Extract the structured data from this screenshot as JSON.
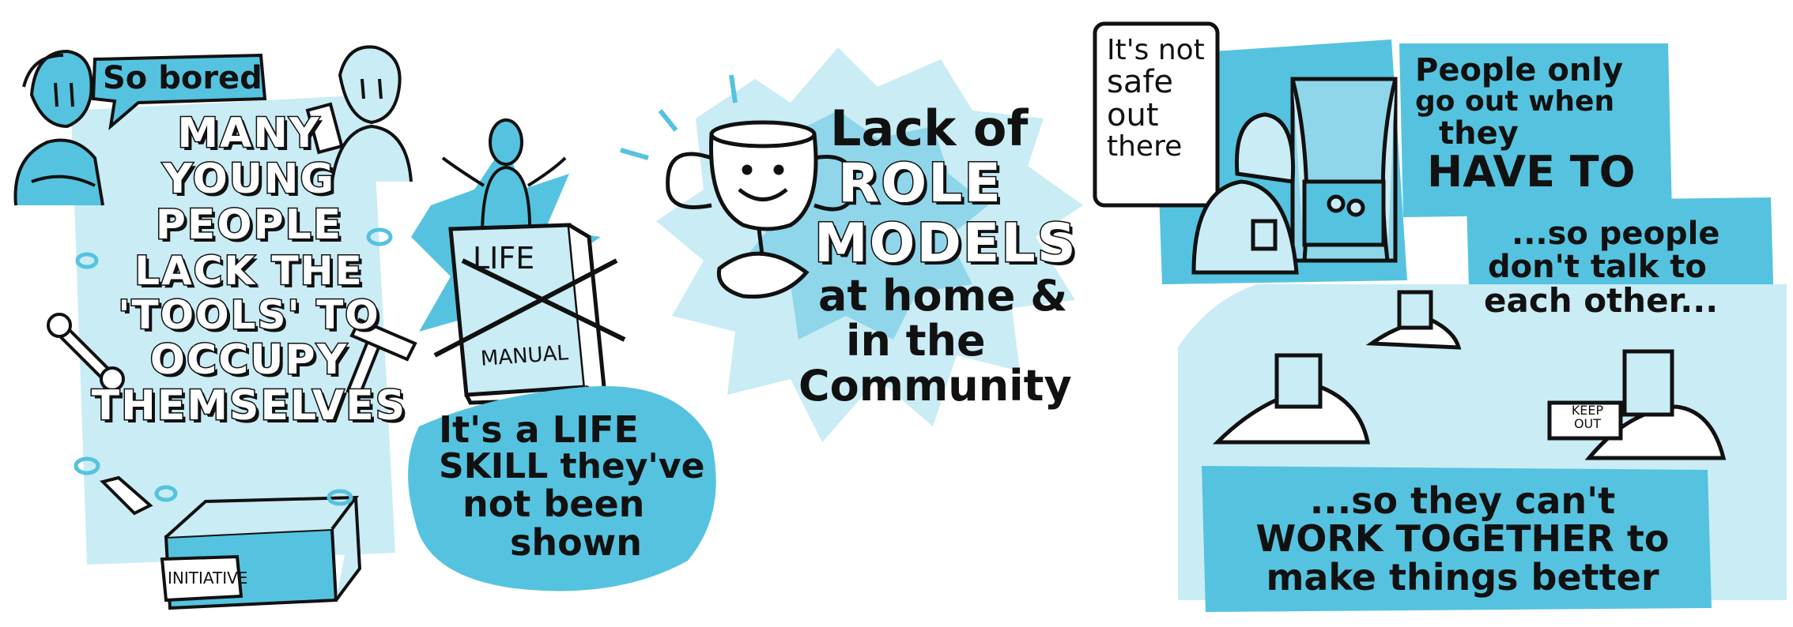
{
  "colors": {
    "blue": "#55c3df",
    "light_blue": "#c9ecf5",
    "mid_blue": "#8fd6ea",
    "ink": "#111111",
    "white": "#ffffff"
  },
  "panel1": {
    "speech": "So bored",
    "headline": [
      "MANY",
      "YOUNG",
      "PEOPLE",
      "LACK THE",
      "'TOOLS' TO",
      "OCCUPY",
      "THEMSELVES"
    ],
    "box_label": "INITIATIVE"
  },
  "panel2": {
    "book_top": "LIFE",
    "book_bottom": "MANUAL",
    "caption": [
      "It's a LIFE",
      "SKILL they've",
      "not been",
      "shown"
    ]
  },
  "panel3": {
    "line1": "Lack of",
    "line2": "ROLE",
    "line3": "MODELS",
    "line4": "at home &",
    "line5": "in the",
    "line6": "Community"
  },
  "panel4": {
    "sign": [
      "It's not",
      "safe",
      "out",
      "there"
    ],
    "top_caption": [
      "People only",
      "go out when",
      "they"
    ],
    "have_to": "HAVE TO",
    "mid_caption": [
      "...so people",
      "don't talk to",
      "each other..."
    ],
    "keep_out": [
      "KEEP",
      "OUT"
    ],
    "bottom_caption": [
      "...so they can't",
      "WORK TOGETHER to",
      "make things better"
    ]
  }
}
